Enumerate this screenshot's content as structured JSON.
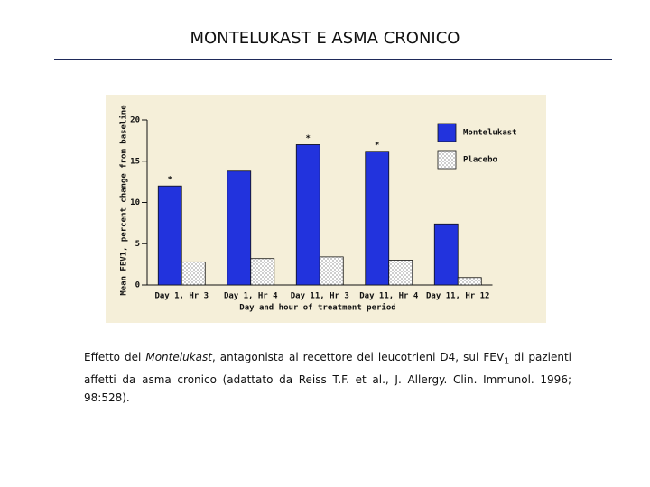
{
  "title": "MONTELUKAST E ASMA CRONICO",
  "chart_data": {
    "type": "bar",
    "y_label": "Mean FEV1, percent change from baseline",
    "x_label": "Day and hour of treatment period",
    "categories": [
      "Day 1, Hr 3",
      "Day 1, Hr 4",
      "Day 11, Hr 3",
      "Day 11, Hr 4",
      "Day 11, Hr 12"
    ],
    "series": [
      {
        "name": "Montelukast",
        "color": "#2233dd",
        "values": [
          12.0,
          13.8,
          17.0,
          16.2,
          7.4
        ]
      },
      {
        "name": "Placebo",
        "color": "#ffffff",
        "hatch": "dots",
        "values": [
          2.8,
          3.2,
          3.4,
          3.0,
          0.9
        ]
      }
    ],
    "significance": [
      "*",
      null,
      "*",
      "*",
      null
    ],
    "ylim": [
      0,
      20
    ],
    "yticks": [
      0,
      5,
      10,
      15,
      20
    ],
    "background": "#f5efd9",
    "legend": "top-right"
  },
  "caption": {
    "parts": [
      "Effetto del ",
      "Montelukast",
      ", antagonista al recettore dei leucotrieni D4, sul FEV",
      "1",
      " di pazienti affetti da asma cronico (adattato da Reiss T.F. et al., J. Allergy. Clin. Immunol. 1996; 98:528)."
    ]
  }
}
